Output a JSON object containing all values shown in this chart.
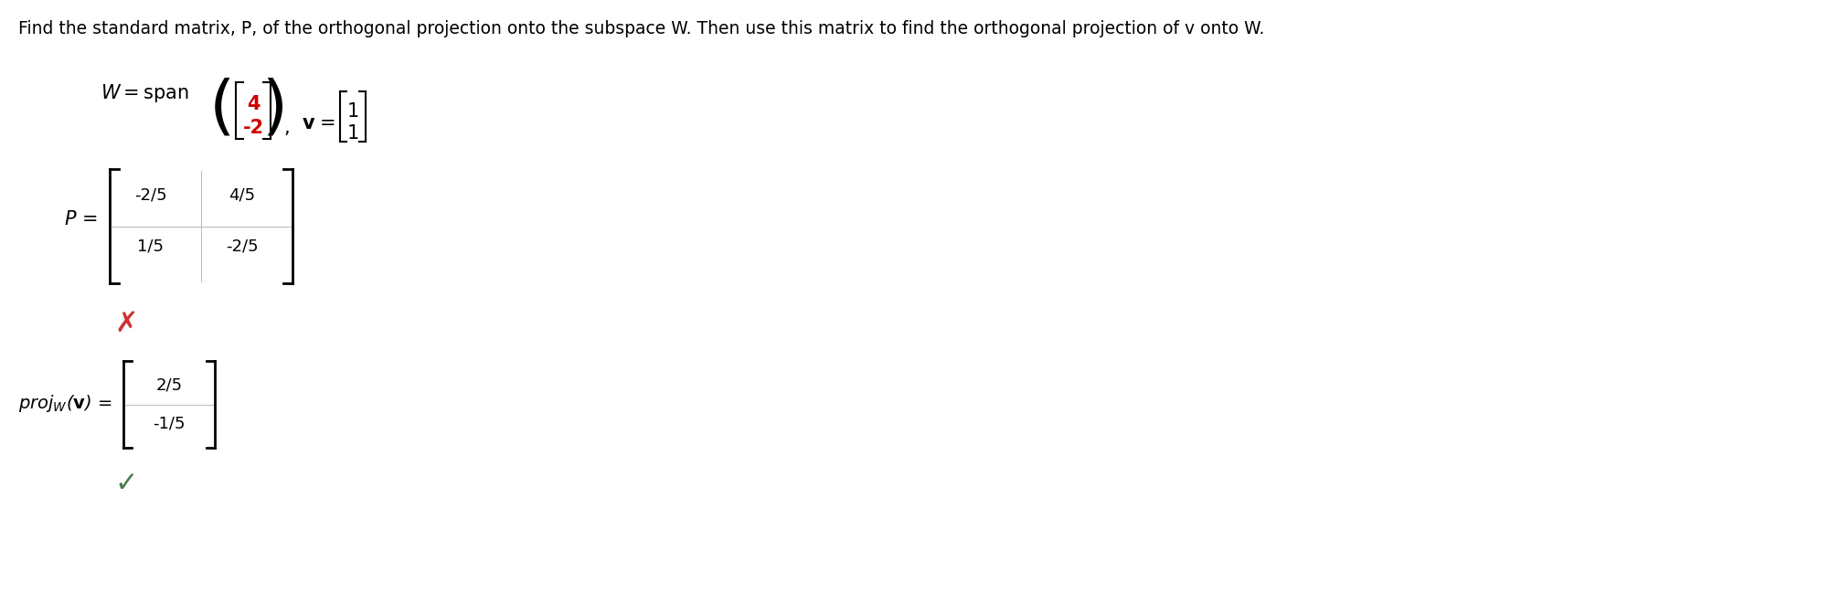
{
  "title": "Find the standard matrix, P, of the orthogonal projection onto the subspace W. Then use this matrix to find the orthogonal projection of v onto W.",
  "title_fontsize": 13.5,
  "bg_color": "#ffffff",
  "text_color": "#000000",
  "red_color": "#cc0000",
  "green_color": "#4a7c4e",
  "span_vector": [
    "4",
    "-2"
  ],
  "v_vector": [
    "1",
    "1"
  ],
  "P_matrix": [
    [
      "-2/5",
      "4/5"
    ],
    [
      "1/5",
      "-2/5"
    ]
  ],
  "proj_vector": [
    "2/5",
    "-1/5"
  ],
  "wrong_mark": "✗",
  "right_mark": "✓"
}
